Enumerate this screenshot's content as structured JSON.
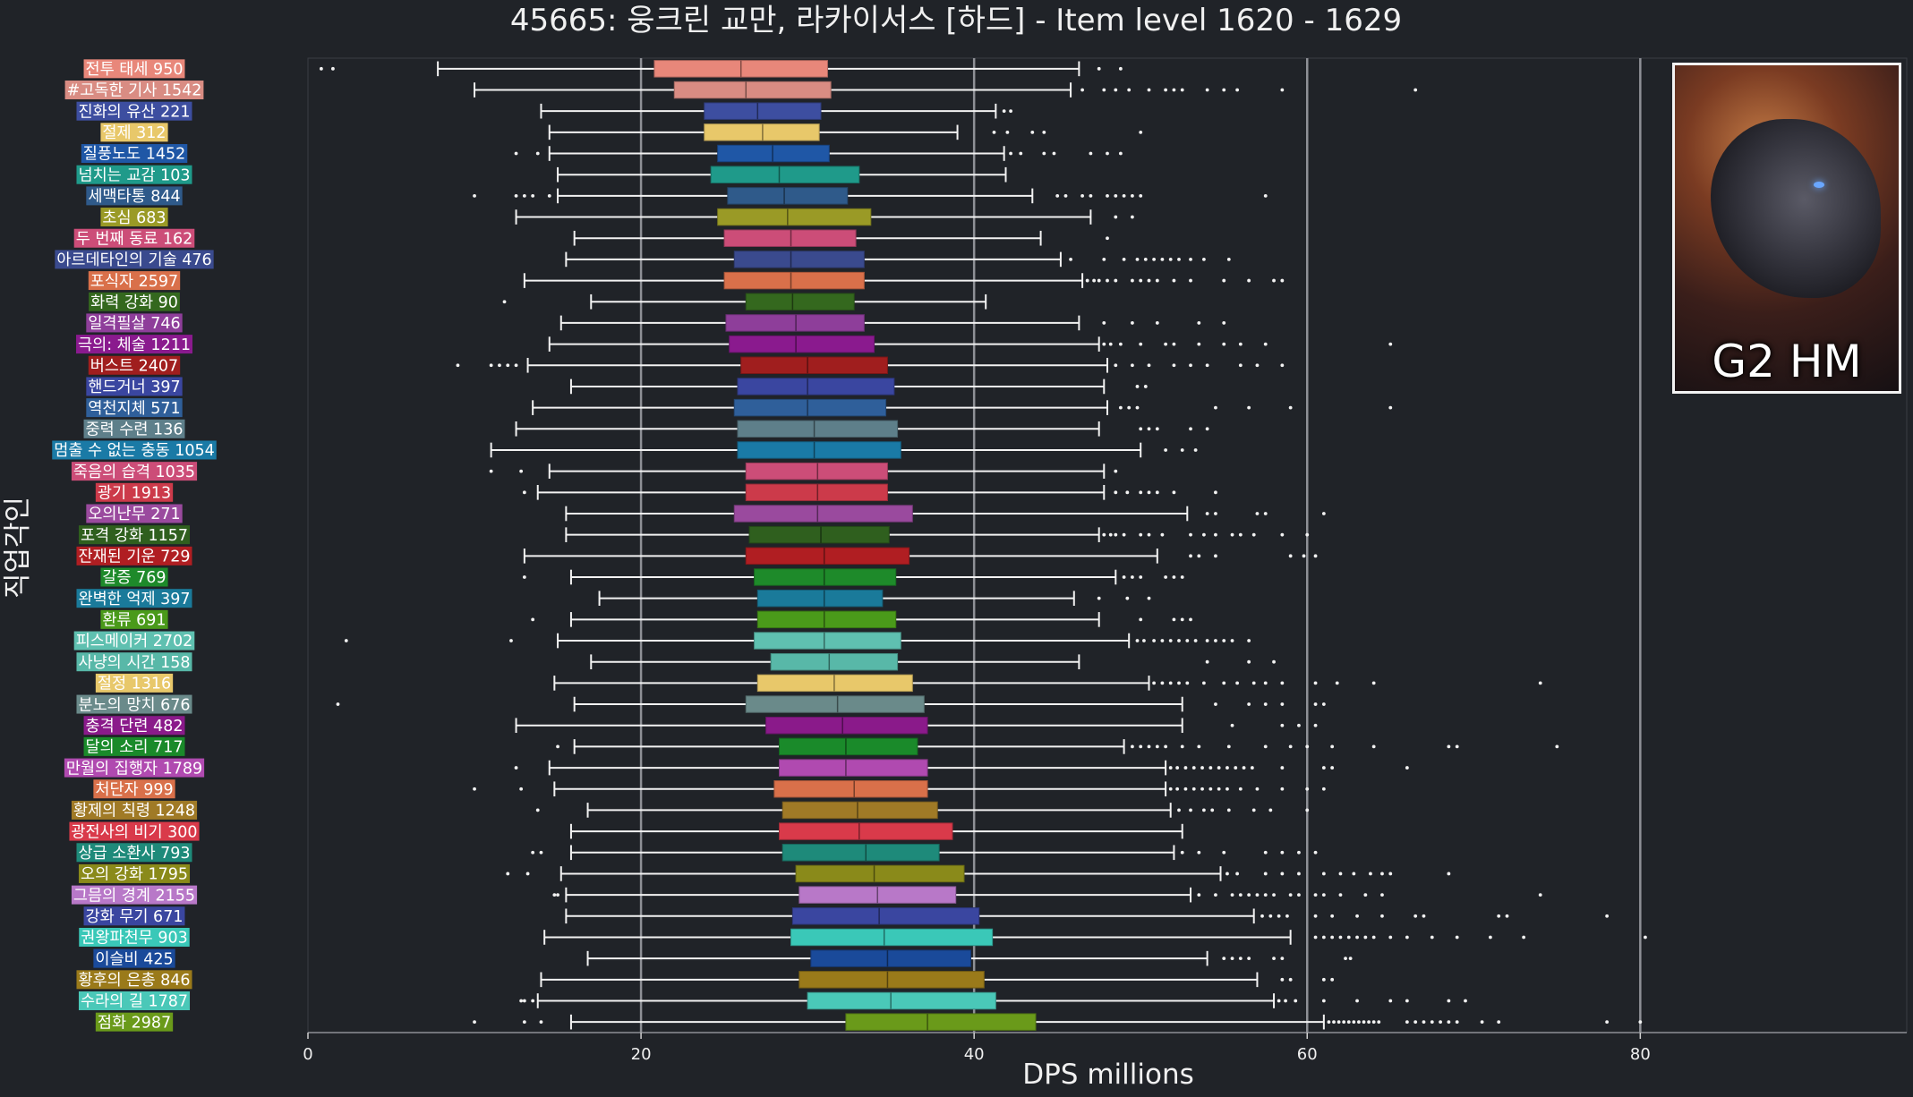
{
  "badge": {
    "text": "G2 HM"
  },
  "chart_data": {
    "type": "box",
    "title": "45665: 웅크린 교만, 라카이서스 [하드] - Item level 1620 - 1629",
    "xlabel": "DPS millions",
    "ylabel": "직업각인",
    "xlim": [
      0,
      96
    ],
    "xticks": [
      0,
      20,
      40,
      60,
      80
    ],
    "grid": "vertical",
    "categories": [
      {
        "label": "전투 태세 950",
        "color": "#e8877a",
        "whislo": 7.8,
        "q1": 20.8,
        "med": 26.0,
        "q3": 31.2,
        "whishi": 46.3,
        "fliers": [
          0.8,
          1.5,
          47.5,
          48.8
        ]
      },
      {
        "label": "#고독한 기사 1542",
        "color": "#d98c83",
        "whislo": 10.0,
        "q1": 22.0,
        "med": 26.3,
        "q3": 31.4,
        "whishi": 45.8,
        "fliers": [
          46.5,
          47.8,
          48.5,
          49.3,
          50.5,
          51.5,
          52.0,
          52.5,
          54.0,
          55.0,
          55.8,
          58.5,
          66.5
        ]
      },
      {
        "label": "진화의 유산 221",
        "color": "#3d4ea0",
        "whislo": 14.0,
        "q1": 23.8,
        "med": 27.0,
        "q3": 30.8,
        "whishi": 41.3,
        "fliers": [
          41.8,
          42.2
        ]
      },
      {
        "label": "절제 312",
        "color": "#e8c86a",
        "whislo": 14.5,
        "q1": 23.8,
        "med": 27.3,
        "q3": 30.7,
        "whishi": 39.0,
        "fliers": [
          41.2,
          42.0,
          43.5,
          44.2,
          50.0
        ]
      },
      {
        "label": "질풍노도 1452",
        "color": "#1f57a6",
        "whislo": 14.5,
        "q1": 24.6,
        "med": 27.9,
        "q3": 31.3,
        "whishi": 41.8,
        "fliers": [
          12.5,
          13.8,
          42.2,
          42.8,
          44.2,
          44.8,
          47.0,
          48.0,
          48.8
        ]
      },
      {
        "label": "넘치는 교감 103",
        "color": "#1f9a8a",
        "whislo": 15.0,
        "q1": 24.2,
        "med": 28.3,
        "q3": 33.1,
        "whishi": 41.9,
        "fliers": []
      },
      {
        "label": "세맥타통 844",
        "color": "#2f5a8a",
        "whislo": 15.0,
        "q1": 25.2,
        "med": 28.6,
        "q3": 32.4,
        "whishi": 43.5,
        "fliers": [
          10.0,
          12.5,
          13.0,
          13.5,
          14.5,
          45.0,
          45.5,
          46.5,
          47.0,
          48.0,
          48.5,
          49.0,
          49.5,
          50.0,
          57.5
        ]
      },
      {
        "label": "초심 683",
        "color": "#9a9a26",
        "whislo": 12.5,
        "q1": 24.6,
        "med": 28.8,
        "q3": 33.8,
        "whishi": 47.0,
        "fliers": [
          48.5,
          49.5
        ]
      },
      {
        "label": "두 번째 동료 162",
        "color": "#cc4d78",
        "whislo": 16.0,
        "q1": 25.0,
        "med": 29.0,
        "q3": 32.9,
        "whishi": 44.0,
        "fliers": [
          48.0
        ]
      },
      {
        "label": "아르데타인의 기술 476",
        "color": "#3a4a8e",
        "whislo": 15.5,
        "q1": 25.6,
        "med": 29.0,
        "q3": 33.4,
        "whishi": 45.2,
        "fliers": [
          45.8,
          47.8,
          49.0,
          49.8,
          50.3,
          50.8,
          51.3,
          51.8,
          52.3,
          53.0,
          53.8,
          55.3
        ]
      },
      {
        "label": "포식자 2597",
        "color": "#d9704a",
        "whislo": 13.0,
        "q1": 25.0,
        "med": 29.0,
        "q3": 33.4,
        "whishi": 46.5,
        "fliers": [
          46.8,
          47.2,
          47.5,
          48.0,
          48.5,
          49.5,
          50.0,
          50.5,
          51.0,
          52.0,
          53.0,
          55.0,
          56.5,
          58.0,
          58.5
        ]
      },
      {
        "label": "화력 강화 90",
        "color": "#34681e",
        "whislo": 17.0,
        "q1": 26.3,
        "med": 29.1,
        "q3": 32.8,
        "whishi": 40.7,
        "fliers": [
          11.8
        ]
      },
      {
        "label": "일격필살 746",
        "color": "#8e3e9a",
        "whislo": 15.2,
        "q1": 25.1,
        "med": 29.3,
        "q3": 33.4,
        "whishi": 46.3,
        "fliers": [
          47.8,
          49.5,
          51.0,
          53.5,
          55.0
        ]
      },
      {
        "label": "극의: 체술 1211",
        "color": "#8a1a8e",
        "whislo": 14.5,
        "q1": 25.3,
        "med": 29.3,
        "q3": 34.0,
        "whishi": 47.5,
        "fliers": [
          47.8,
          48.2,
          48.8,
          50.0,
          51.5,
          52.0,
          53.5,
          55.0,
          56.0,
          57.5,
          65.0
        ]
      },
      {
        "label": "버스트 2407",
        "color": "#a01e1e",
        "whislo": 13.2,
        "q1": 26.0,
        "med": 30.0,
        "q3": 34.8,
        "whishi": 48.0,
        "fliers": [
          9.0,
          11.0,
          11.5,
          12.0,
          12.5,
          48.5,
          49.5,
          50.5,
          52.0,
          53.0,
          54.0,
          56.0,
          57.0,
          58.5
        ]
      },
      {
        "label": "핸드거너 397",
        "color": "#3a46a0",
        "whislo": 15.8,
        "q1": 25.8,
        "med": 30.0,
        "q3": 35.2,
        "whishi": 47.8,
        "fliers": [
          49.8,
          50.3
        ]
      },
      {
        "label": "역천지체 571",
        "color": "#2f5f9a",
        "whislo": 13.5,
        "q1": 25.6,
        "med": 30.0,
        "q3": 34.7,
        "whishi": 48.0,
        "fliers": [
          48.8,
          49.3,
          49.8,
          54.5,
          56.5,
          59.0,
          65.0
        ]
      },
      {
        "label": "중력 수련 136",
        "color": "#5e7f8a",
        "whislo": 12.5,
        "q1": 25.8,
        "med": 30.4,
        "q3": 35.4,
        "whishi": 47.5,
        "fliers": [
          50.0,
          50.5,
          51.0,
          53.0,
          54.0
        ]
      },
      {
        "label": "멈출 수 없는 충동 1054",
        "color": "#1a7aa6",
        "whislo": 11.0,
        "q1": 25.8,
        "med": 30.4,
        "q3": 35.6,
        "whishi": 50.0,
        "fliers": [
          51.5,
          52.5,
          53.3
        ]
      },
      {
        "label": "죽음의 습격 1035",
        "color": "#cc4d78",
        "whislo": 14.5,
        "q1": 26.3,
        "med": 30.6,
        "q3": 34.8,
        "whishi": 47.8,
        "fliers": [
          11.0,
          12.8,
          48.5
        ]
      },
      {
        "label": "광기 1913",
        "color": "#cc3a4a",
        "whislo": 13.8,
        "q1": 26.3,
        "med": 30.6,
        "q3": 34.8,
        "whishi": 47.8,
        "fliers": [
          13.0,
          48.5,
          49.2,
          50.0,
          50.5,
          51.0,
          52.0,
          54.5
        ]
      },
      {
        "label": "오의난무 271",
        "color": "#9a4a9e",
        "whislo": 15.5,
        "q1": 25.6,
        "med": 30.6,
        "q3": 36.3,
        "whishi": 52.8,
        "fliers": [
          54.0,
          54.5,
          57.0,
          57.5,
          61.0
        ]
      },
      {
        "label": "포격 강화 1157",
        "color": "#2f5f1e",
        "whislo": 15.5,
        "q1": 26.5,
        "med": 30.8,
        "q3": 34.9,
        "whishi": 47.5,
        "fliers": [
          47.8,
          48.2,
          48.5,
          49.0,
          50.0,
          50.5,
          51.3,
          53.0,
          53.8,
          54.5,
          55.5,
          56.0,
          56.8,
          58.5,
          60.0
        ]
      },
      {
        "label": "잔재된 기운 729",
        "color": "#b01e22",
        "whislo": 13.0,
        "q1": 26.3,
        "med": 31.0,
        "q3": 36.1,
        "whishi": 51.0,
        "fliers": [
          53.0,
          53.5,
          54.5,
          59.0,
          59.8,
          60.5
        ]
      },
      {
        "label": "갈증 769",
        "color": "#1e8a2a",
        "whislo": 15.8,
        "q1": 26.8,
        "med": 31.0,
        "q3": 35.3,
        "whishi": 48.5,
        "fliers": [
          13.0,
          49.0,
          49.5,
          50.0,
          51.5,
          52.0,
          52.5
        ]
      },
      {
        "label": "완벽한 억제 397",
        "color": "#1a7a9a",
        "whislo": 17.5,
        "q1": 27.0,
        "med": 31.0,
        "q3": 34.5,
        "whishi": 46.0,
        "fliers": [
          47.5,
          49.2,
          50.5
        ]
      },
      {
        "label": "환류 691",
        "color": "#4a9a1a",
        "whislo": 15.8,
        "q1": 27.0,
        "med": 31.0,
        "q3": 35.3,
        "whishi": 47.5,
        "fliers": [
          13.5,
          50.0,
          52.0,
          52.5,
          53.0
        ]
      },
      {
        "label": "피스메이커 2702",
        "color": "#5fc0b0",
        "whislo": 15.0,
        "q1": 26.8,
        "med": 31.0,
        "q3": 35.6,
        "whishi": 49.3,
        "fliers": [
          2.3,
          12.2,
          49.8,
          50.2,
          50.8,
          51.3,
          51.8,
          52.3,
          52.8,
          53.3,
          54.0,
          54.5,
          55.0,
          55.5,
          56.5
        ]
      },
      {
        "label": "사냥의 시간 158",
        "color": "#58b8a8",
        "whislo": 17.0,
        "q1": 27.8,
        "med": 31.3,
        "q3": 35.4,
        "whishi": 46.3,
        "fliers": [
          54.0,
          56.5,
          58.0
        ]
      },
      {
        "label": "절정 1316",
        "color": "#e8c86a",
        "whislo": 14.8,
        "q1": 27.0,
        "med": 31.6,
        "q3": 36.3,
        "whishi": 50.5,
        "fliers": [
          50.8,
          51.3,
          51.8,
          52.3,
          52.8,
          53.8,
          55.0,
          55.8,
          56.8,
          57.5,
          58.5,
          60.5,
          61.8,
          64.0,
          74.0
        ]
      },
      {
        "label": "분노의 망치 676",
        "color": "#6a8a8a",
        "whislo": 16.0,
        "q1": 26.3,
        "med": 31.8,
        "q3": 37.0,
        "whishi": 52.5,
        "fliers": [
          1.8,
          54.5,
          56.5,
          57.5,
          58.5,
          60.5,
          61.0
        ]
      },
      {
        "label": "충격 단련 482",
        "color": "#8a1a8a",
        "whislo": 12.5,
        "q1": 27.5,
        "med": 32.1,
        "q3": 37.2,
        "whishi": 52.5,
        "fliers": [
          55.5,
          58.5,
          59.5,
          60.5
        ]
      },
      {
        "label": "달의 소리 717",
        "color": "#1a8a2a",
        "whislo": 16.0,
        "q1": 28.3,
        "med": 32.3,
        "q3": 36.6,
        "whishi": 49.0,
        "fliers": [
          15.0,
          49.5,
          50.0,
          50.5,
          51.0,
          51.5,
          52.5,
          53.5,
          55.3,
          57.5,
          59.0,
          60.0,
          61.5,
          64.0,
          68.5,
          69.0,
          75.0
        ]
      },
      {
        "label": "만월의 집행자 1789",
        "color": "#b04ab0",
        "whislo": 14.5,
        "q1": 28.3,
        "med": 32.3,
        "q3": 37.2,
        "whishi": 51.5,
        "fliers": [
          12.5,
          51.8,
          52.2,
          52.7,
          53.2,
          53.7,
          54.2,
          54.7,
          55.2,
          55.7,
          56.2,
          56.7,
          58.5,
          61.0,
          61.5,
          66.0
        ]
      },
      {
        "label": "처단자 999",
        "color": "#d9704a",
        "whislo": 14.8,
        "q1": 28.0,
        "med": 32.8,
        "q3": 37.2,
        "whishi": 51.5,
        "fliers": [
          10.0,
          12.8,
          51.8,
          52.2,
          52.7,
          53.2,
          53.7,
          54.2,
          54.7,
          55.2,
          56.0,
          57.0,
          58.5,
          60.0,
          61.0
        ]
      },
      {
        "label": "황제의 칙령 1248",
        "color": "#a07a26",
        "whislo": 16.8,
        "q1": 28.5,
        "med": 33.0,
        "q3": 37.8,
        "whishi": 51.8,
        "fliers": [
          13.8,
          52.3,
          53.0,
          53.8,
          54.3,
          55.3,
          56.8,
          57.8,
          60.0
        ]
      },
      {
        "label": "광전사의 비기 300",
        "color": "#d93a4a",
        "whislo": 15.8,
        "q1": 28.3,
        "med": 33.1,
        "q3": 38.7,
        "whishi": 52.5,
        "fliers": []
      },
      {
        "label": "상급 소환사 793",
        "color": "#1e8a7a",
        "whislo": 15.8,
        "q1": 28.5,
        "med": 33.5,
        "q3": 37.9,
        "whishi": 52.0,
        "fliers": [
          13.5,
          14.0,
          52.5,
          53.5,
          55.0,
          57.5,
          58.5,
          59.5,
          60.5
        ]
      },
      {
        "label": "오의 강화 1795",
        "color": "#8a8a1a",
        "whislo": 15.2,
        "q1": 29.3,
        "med": 34.0,
        "q3": 39.4,
        "whishi": 54.8,
        "fliers": [
          12.0,
          13.2,
          55.2,
          55.8,
          57.5,
          58.5,
          59.5,
          61.0,
          62.0,
          62.8,
          63.8,
          64.5,
          65.0,
          68.5
        ]
      },
      {
        "label": "그믐의 경계 2155",
        "color": "#b878c8",
        "whislo": 15.5,
        "q1": 29.5,
        "med": 34.2,
        "q3": 38.9,
        "whishi": 53.0,
        "fliers": [
          14.8,
          15.0,
          53.5,
          54.5,
          55.5,
          56.0,
          56.5,
          57.0,
          57.5,
          58.0,
          59.0,
          59.5,
          60.5,
          61.0,
          62.0,
          63.5,
          64.5,
          74.0
        ]
      },
      {
        "label": "강화 무기 671",
        "color": "#3a46a0",
        "whislo": 15.5,
        "q1": 29.1,
        "med": 34.3,
        "q3": 40.3,
        "whishi": 56.8,
        "fliers": [
          57.3,
          57.8,
          58.3,
          58.8,
          60.5,
          61.5,
          63.0,
          64.5,
          66.5,
          67.0,
          71.5,
          72.0,
          78.0
        ]
      },
      {
        "label": "권왕파천무 903",
        "color": "#3ac8b8",
        "whislo": 14.2,
        "q1": 29.0,
        "med": 34.6,
        "q3": 41.1,
        "whishi": 59.0,
        "fliers": [
          60.5,
          61.0,
          61.5,
          62.0,
          62.5,
          63.0,
          63.5,
          64.0,
          65.0,
          66.0,
          67.5,
          69.0,
          71.0,
          73.0,
          80.3
        ]
      },
      {
        "label": "이슬비 425",
        "color": "#1a4a9a",
        "whislo": 16.8,
        "q1": 30.2,
        "med": 34.8,
        "q3": 39.8,
        "whishi": 54.0,
        "fliers": [
          55.0,
          55.5,
          56.0,
          56.5,
          58.0,
          58.5,
          62.3,
          62.6
        ]
      },
      {
        "label": "황후의 은총 846",
        "color": "#9a7a1a",
        "whislo": 14.0,
        "q1": 29.5,
        "med": 34.8,
        "q3": 40.6,
        "whishi": 57.0,
        "fliers": [
          58.5,
          59.0,
          61.0,
          61.5
        ]
      },
      {
        "label": "수라의 길 1787",
        "color": "#4ac8b8",
        "whislo": 13.8,
        "q1": 30.0,
        "med": 35.0,
        "q3": 41.3,
        "whishi": 58.0,
        "fliers": [
          12.8,
          13.0,
          13.5,
          58.3,
          58.7,
          59.3,
          61.0,
          63.0,
          65.0,
          66.0,
          68.5,
          69.5
        ]
      },
      {
        "label": "점화 2987",
        "color": "#6a9a1a",
        "whislo": 15.8,
        "q1": 32.3,
        "med": 37.2,
        "q3": 43.7,
        "whishi": 61.0,
        "fliers": [
          10.0,
          13.0,
          14.0,
          61.3,
          61.6,
          61.9,
          62.2,
          62.5,
          62.8,
          63.1,
          63.4,
          63.7,
          64.0,
          64.3,
          66.0,
          66.5,
          67.0,
          67.5,
          68.0,
          68.5,
          69.0,
          70.5,
          71.5,
          78.0,
          80.0
        ]
      }
    ]
  }
}
